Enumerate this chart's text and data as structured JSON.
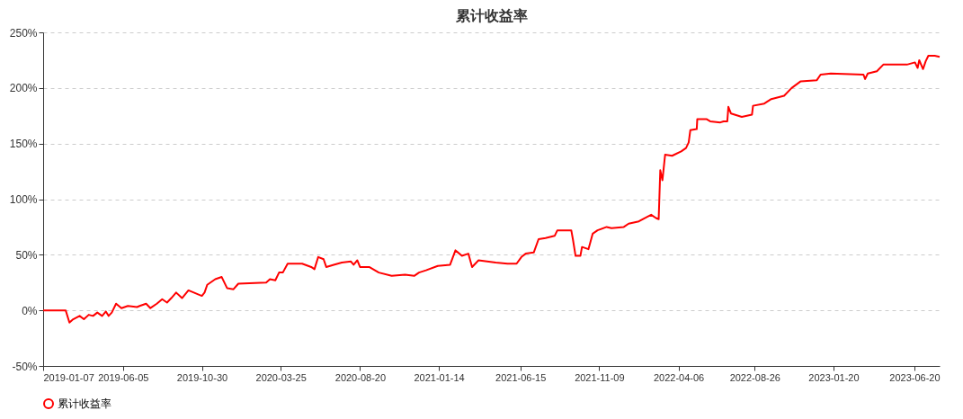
{
  "chart_data": {
    "type": "line",
    "title": "累计收益率",
    "x": [
      "2019-01-07",
      "2019-02-18",
      "2019-02-25",
      "2019-03-04",
      "2019-03-16",
      "2019-03-24",
      "2019-04-02",
      "2019-04-10",
      "2019-04-18",
      "2019-04-27",
      "2019-05-04",
      "2019-05-09",
      "2019-05-15",
      "2019-05-23",
      "2019-06-02",
      "2019-06-14",
      "2019-07-01",
      "2019-07-06",
      "2019-07-18",
      "2019-07-26",
      "2019-08-07",
      "2019-08-17",
      "2019-08-26",
      "2019-09-03",
      "2019-09-12",
      "2019-09-23",
      "2019-10-05",
      "2019-10-15",
      "2019-10-30",
      "2019-11-04",
      "2019-11-09",
      "2019-11-24",
      "2019-12-06",
      "2019-12-16",
      "2019-12-28",
      "2020-01-06",
      "2020-02-27",
      "2020-03-05",
      "2020-03-15",
      "2020-03-22",
      "2020-03-29",
      "2020-04-07",
      "2020-04-17",
      "2020-05-04",
      "2020-05-21",
      "2020-05-27",
      "2020-06-03",
      "2020-06-13",
      "2020-06-18",
      "2020-07-02",
      "2020-07-17",
      "2020-08-03",
      "2020-08-08",
      "2020-08-15",
      "2020-08-20",
      "2020-09-06",
      "2020-09-24",
      "2020-10-18",
      "2020-11-12",
      "2020-11-29",
      "2020-12-08",
      "2020-12-21",
      "2021-01-12",
      "2021-02-04",
      "2021-02-14",
      "2021-02-26",
      "2021-03-10",
      "2021-03-17",
      "2021-03-29",
      "2021-04-30",
      "2021-05-22",
      "2021-06-08",
      "2021-06-17",
      "2021-06-25",
      "2021-07-10",
      "2021-07-19",
      "2021-08-01",
      "2021-08-18",
      "2021-08-23",
      "2021-09-18",
      "2021-09-21",
      "2021-09-26",
      "2021-10-05",
      "2021-10-08",
      "2021-10-20",
      "2021-10-28",
      "2021-11-06",
      "2021-11-23",
      "2021-12-02",
      "2021-12-25",
      "2022-01-03",
      "2022-01-22",
      "2022-02-02",
      "2022-02-14",
      "2022-02-23",
      "2022-02-28",
      "2022-03-03",
      "2022-03-07",
      "2022-03-12",
      "2022-03-25",
      "2022-04-11",
      "2022-04-20",
      "2022-04-25",
      "2022-04-28",
      "2022-05-10",
      "2022-05-11",
      "2022-05-28",
      "2022-06-04",
      "2022-06-23",
      "2022-06-29",
      "2022-07-06",
      "2022-07-08",
      "2022-07-13",
      "2022-08-02",
      "2022-08-21",
      "2022-08-23",
      "2022-09-13",
      "2022-09-26",
      "2022-10-20",
      "2022-11-03",
      "2022-11-20",
      "2022-12-20",
      "2022-12-27",
      "2023-01-15",
      "2023-03-17",
      "2023-03-20",
      "2023-03-25",
      "2023-04-11",
      "2023-04-23",
      "2023-06-06",
      "2023-06-21",
      "2023-06-26",
      "2023-06-29",
      "2023-07-06",
      "2023-07-11",
      "2023-07-16",
      "2023-07-28",
      "2023-08-06"
    ],
    "series": [
      {
        "name": "累计收益率",
        "color": "#ff0000",
        "values": [
          0,
          0,
          -11,
          -8,
          -5,
          -8,
          -4,
          -5,
          -2,
          -5,
          -1,
          -5,
          -2,
          6,
          2,
          4,
          3,
          4,
          6,
          2,
          6,
          10,
          7,
          11,
          16,
          11,
          18,
          16,
          13,
          16,
          23,
          28,
          30,
          20,
          19,
          24,
          25,
          28,
          27,
          34,
          34,
          42,
          42,
          42,
          39,
          37,
          48,
          46,
          39,
          41,
          43,
          44,
          41,
          45,
          39,
          39,
          34,
          31,
          32,
          31,
          34,
          36,
          40,
          41,
          54,
          49,
          51,
          39,
          45,
          43,
          42,
          42,
          48,
          51,
          52,
          64,
          65,
          67,
          72,
          72,
          64,
          49,
          49,
          57,
          55,
          69,
          72,
          75,
          74,
          75,
          78,
          80,
          83,
          86,
          83,
          82,
          126,
          117,
          140,
          139,
          143,
          146,
          151,
          162,
          163,
          172,
          172,
          170,
          169,
          170,
          170,
          183,
          177,
          174,
          176,
          184,
          186,
          190,
          193,
          200,
          206,
          207,
          212,
          213,
          212,
          208,
          213,
          215,
          221,
          221,
          223,
          218,
          225,
          217,
          224,
          229,
          229,
          228
        ]
      }
    ],
    "xlim": [
      "2019-01-07",
      "2023-08-06"
    ],
    "xticks": [
      "2019-01-07",
      "2019-06-05",
      "2019-10-30",
      "2020-03-25",
      "2020-08-20",
      "2021-01-14",
      "2021-06-15",
      "2021-11-09",
      "2022-04-06",
      "2022-08-26",
      "2023-01-20",
      "2023-06-20"
    ],
    "ylim": [
      -50,
      250
    ],
    "yticks": [
      {
        "value": -50,
        "label": "-50%"
      },
      {
        "value": 0,
        "label": "0%"
      },
      {
        "value": 50,
        "label": "50%"
      },
      {
        "value": 100,
        "label": "100%"
      },
      {
        "value": 150,
        "label": "150%"
      },
      {
        "value": 200,
        "label": "200%"
      },
      {
        "value": 250,
        "label": "250%"
      }
    ],
    "grid": "y",
    "legend": "bottom",
    "marker": "none",
    "line_style": "solid"
  }
}
